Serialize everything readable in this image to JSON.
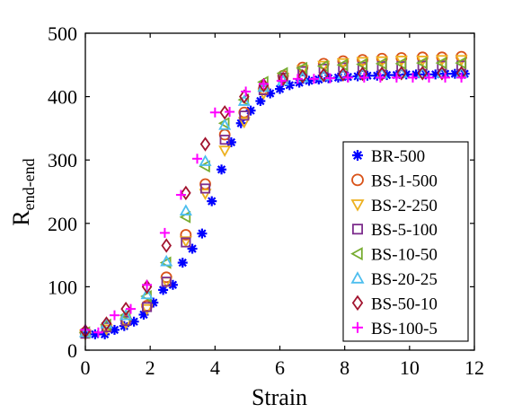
{
  "chart_data": {
    "type": "scatter",
    "xlabel": "Strain",
    "ylabel_main": "R",
    "ylabel_sub": "end-end",
    "xlim": [
      0,
      12
    ],
    "ylim": [
      0,
      500
    ],
    "xticks": [
      0,
      2,
      4,
      6,
      8,
      10,
      12
    ],
    "yticks": [
      0,
      100,
      200,
      300,
      400,
      500
    ],
    "grid": false,
    "legend": "bottom-right",
    "series": [
      {
        "name": "BR-500",
        "marker": "asterisk",
        "color": "#0000ff",
        "x": [
          0.0,
          0.3,
          0.6,
          0.9,
          1.2,
          1.5,
          1.8,
          2.1,
          2.4,
          2.7,
          3.0,
          3.3,
          3.6,
          3.9,
          4.2,
          4.5,
          4.8,
          5.1,
          5.4,
          5.7,
          6.0,
          6.3,
          6.6,
          6.9,
          7.2,
          7.5,
          7.8,
          8.1,
          8.4,
          8.7,
          9.0,
          9.3,
          9.6,
          9.9,
          10.2,
          10.5,
          10.8,
          11.1,
          11.4,
          11.7
        ],
        "y": [
          26,
          25,
          25,
          32,
          38,
          45,
          56,
          75,
          95,
          103,
          138,
          160,
          184,
          235,
          285,
          328,
          358,
          378,
          393,
          405,
          412,
          418,
          422,
          425,
          427,
          429,
          430,
          431,
          432,
          433,
          433,
          434,
          434,
          435,
          435,
          435,
          435,
          436,
          436,
          436
        ]
      },
      {
        "name": "BS-1-500",
        "marker": "circle",
        "color": "#d95319",
        "x": [
          0.0,
          0.65,
          1.25,
          1.9,
          2.5,
          3.1,
          3.7,
          4.3,
          4.9,
          5.5,
          6.1,
          6.7,
          7.35,
          7.95,
          8.55,
          9.15,
          9.75,
          10.4,
          11.0,
          11.6
        ],
        "y": [
          28,
          38,
          48,
          70,
          115,
          182,
          262,
          340,
          375,
          412,
          433,
          446,
          452,
          456,
          458,
          460,
          461,
          462,
          462,
          463
        ]
      },
      {
        "name": "BS-2-250",
        "marker": "triangle-down",
        "color": "#edb120",
        "x": [
          0.0,
          0.65,
          1.25,
          1.9,
          2.5,
          3.1,
          3.7,
          4.3,
          4.9,
          5.5,
          6.1,
          6.7,
          7.35,
          7.95,
          8.55,
          9.15,
          9.75,
          10.4,
          11.0,
          11.6
        ],
        "y": [
          25,
          33,
          43,
          65,
          108,
          172,
          247,
          315,
          360,
          405,
          430,
          442,
          449,
          453,
          455,
          456,
          457,
          457,
          458,
          458
        ]
      },
      {
        "name": "BS-5-100",
        "marker": "square",
        "color": "#7e2f8e",
        "x": [
          0.0,
          0.65,
          1.25,
          1.9,
          2.5,
          3.1,
          3.7,
          4.3,
          4.9,
          5.5,
          6.1,
          6.7,
          7.35,
          7.95,
          8.55,
          9.15,
          9.75,
          10.4,
          11.0,
          11.6
        ],
        "y": [
          26,
          36,
          46,
          68,
          108,
          170,
          255,
          332,
          370,
          410,
          430,
          440,
          444,
          446,
          447,
          448,
          448,
          449,
          449,
          449
        ]
      },
      {
        "name": "BS-10-50",
        "marker": "triangle-left",
        "color": "#77ac30",
        "x": [
          0.0,
          0.65,
          1.25,
          1.9,
          2.5,
          3.1,
          3.7,
          4.3,
          4.9,
          5.5,
          6.1,
          6.7,
          7.35,
          7.95,
          8.55,
          9.15,
          9.75,
          10.4,
          11.0,
          11.6
        ],
        "y": [
          28,
          40,
          55,
          85,
          138,
          210,
          290,
          358,
          395,
          423,
          437,
          445,
          448,
          450,
          451,
          452,
          452,
          453,
          453,
          453
        ]
      },
      {
        "name": "BS-20-25",
        "marker": "triangle-up",
        "color": "#4dbeee",
        "x": [
          0.0,
          0.65,
          1.25,
          1.9,
          2.5,
          3.1,
          3.7,
          4.3,
          4.9,
          5.5,
          6.1,
          6.7,
          7.35,
          7.95,
          8.55,
          9.15,
          9.75,
          10.4,
          11.0,
          11.6
        ],
        "y": [
          28,
          42,
          55,
          88,
          140,
          220,
          298,
          355,
          393,
          415,
          425,
          430,
          433,
          435,
          436,
          436,
          437,
          437,
          437,
          437
        ]
      },
      {
        "name": "BS-50-10",
        "marker": "diamond",
        "color": "#a2142f",
        "x": [
          0.0,
          0.65,
          1.25,
          1.9,
          2.5,
          3.1,
          3.7,
          4.3,
          4.9,
          5.5,
          6.1,
          6.7,
          7.35,
          7.95,
          8.55,
          9.15,
          9.75,
          10.4,
          11.0,
          11.6
        ],
        "y": [
          30,
          42,
          65,
          100,
          165,
          248,
          325,
          375,
          400,
          418,
          428,
          432,
          434,
          435,
          436,
          436,
          437,
          437,
          437,
          437
        ]
      },
      {
        "name": "BS-100-5",
        "marker": "plus",
        "color": "#ff00ff",
        "x": [
          0.0,
          0.4,
          0.9,
          1.4,
          1.9,
          2.45,
          2.95,
          3.45,
          4.0,
          4.45,
          4.95,
          5.5,
          6.05,
          6.55,
          7.05,
          7.55,
          8.1,
          8.6,
          9.1,
          9.6,
          10.1,
          10.6,
          11.1,
          11.6
        ],
        "y": [
          32,
          28,
          55,
          65,
          103,
          185,
          245,
          302,
          375,
          376,
          408,
          420,
          425,
          428,
          428,
          429,
          430,
          430,
          430,
          430,
          430,
          430,
          430,
          430
        ]
      }
    ]
  }
}
